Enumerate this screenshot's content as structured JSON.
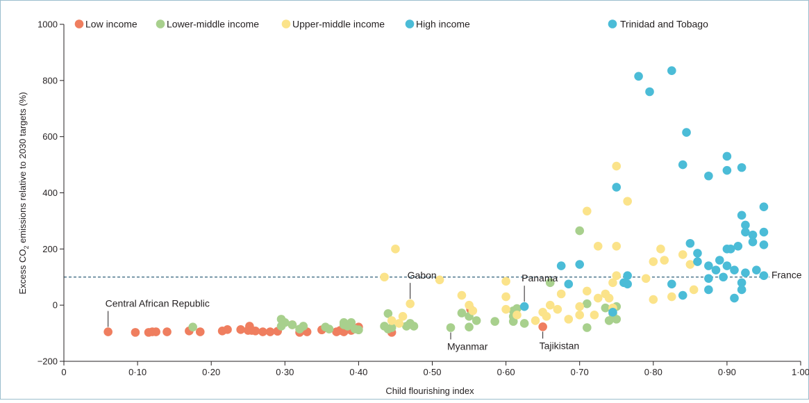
{
  "chart_data": {
    "type": "scatter",
    "xlabel": "Child flourishing index",
    "ylabel_main": "Excess CO",
    "ylabel_sub": "2",
    "ylabel_rest": " emissions relative to 2030 targets (%)",
    "xlim": [
      0,
      1.0
    ],
    "ylim": [
      -200,
      1000
    ],
    "x_ticks": [
      {
        "v": 0,
        "label": "0"
      },
      {
        "v": 0.1,
        "label": "0·10"
      },
      {
        "v": 0.2,
        "label": "0·20"
      },
      {
        "v": 0.3,
        "label": "0·30"
      },
      {
        "v": 0.4,
        "label": "0·40"
      },
      {
        "v": 0.5,
        "label": "0·50"
      },
      {
        "v": 0.6,
        "label": "0·60"
      },
      {
        "v": 0.7,
        "label": "0·70"
      },
      {
        "v": 0.8,
        "label": "0·80"
      },
      {
        "v": 0.9,
        "label": "0·90"
      },
      {
        "v": 1.0,
        "label": "1·00"
      }
    ],
    "y_ticks": [
      {
        "v": 1000,
        "label": "1000"
      },
      {
        "v": 800,
        "label": "800"
      },
      {
        "v": 600,
        "label": "600"
      },
      {
        "v": 400,
        "label": "400"
      },
      {
        "v": 200,
        "label": "200"
      },
      {
        "v": 0,
        "label": "0"
      },
      {
        "v": -200,
        "label": "−200"
      }
    ],
    "reference_line": {
      "y": 100,
      "style": "dashed",
      "color": "#2e5f7a"
    },
    "grid": false,
    "legend_placement": "top",
    "series": [
      {
        "name": "Low income",
        "color": "#ef7e5f",
        "points": [
          [
            0.06,
            -95
          ],
          [
            0.097,
            -97
          ],
          [
            0.115,
            -97
          ],
          [
            0.12,
            -95
          ],
          [
            0.125,
            -95
          ],
          [
            0.14,
            -95
          ],
          [
            0.17,
            -92
          ],
          [
            0.185,
            -95
          ],
          [
            0.215,
            -92
          ],
          [
            0.222,
            -87
          ],
          [
            0.24,
            -87
          ],
          [
            0.25,
            -90
          ],
          [
            0.252,
            -75
          ],
          [
            0.255,
            -90
          ],
          [
            0.26,
            -92
          ],
          [
            0.27,
            -95
          ],
          [
            0.28,
            -95
          ],
          [
            0.29,
            -93
          ],
          [
            0.31,
            -70
          ],
          [
            0.32,
            -97
          ],
          [
            0.33,
            -95
          ],
          [
            0.35,
            -88
          ],
          [
            0.37,
            -95
          ],
          [
            0.375,
            -90
          ],
          [
            0.38,
            -95
          ],
          [
            0.39,
            -90
          ],
          [
            0.4,
            -78
          ],
          [
            0.445,
            -97
          ],
          [
            0.552,
            -15
          ],
          [
            0.65,
            -77
          ]
        ]
      },
      {
        "name": "Lower-middle income",
        "color": "#a8d08d",
        "points": [
          [
            0.175,
            -78
          ],
          [
            0.295,
            -50
          ],
          [
            0.3,
            -62
          ],
          [
            0.295,
            -75
          ],
          [
            0.31,
            -70
          ],
          [
            0.32,
            -85
          ],
          [
            0.325,
            -75
          ],
          [
            0.355,
            -78
          ],
          [
            0.36,
            -85
          ],
          [
            0.38,
            -70
          ],
          [
            0.38,
            -62
          ],
          [
            0.385,
            -75
          ],
          [
            0.39,
            -62
          ],
          [
            0.395,
            -85
          ],
          [
            0.4,
            -88
          ],
          [
            0.435,
            -75
          ],
          [
            0.44,
            -85
          ],
          [
            0.445,
            -80
          ],
          [
            0.465,
            -75
          ],
          [
            0.47,
            -65
          ],
          [
            0.475,
            -75
          ],
          [
            0.44,
            -30
          ],
          [
            0.525,
            -80
          ],
          [
            0.54,
            -28
          ],
          [
            0.55,
            -40
          ],
          [
            0.55,
            -78
          ],
          [
            0.56,
            -55
          ],
          [
            0.585,
            -58
          ],
          [
            0.61,
            -58
          ],
          [
            0.61,
            -20
          ],
          [
            0.61,
            -40
          ],
          [
            0.615,
            -12
          ],
          [
            0.625,
            -65
          ],
          [
            0.66,
            80
          ],
          [
            0.7,
            265
          ],
          [
            0.71,
            -80
          ],
          [
            0.71,
            5
          ],
          [
            0.735,
            -10
          ],
          [
            0.74,
            -55
          ],
          [
            0.75,
            -50
          ],
          [
            0.75,
            -5
          ],
          [
            0.745,
            -30
          ]
        ]
      },
      {
        "name": "Upper-middle income",
        "color": "#fbe38a",
        "points": [
          [
            0.435,
            100
          ],
          [
            0.45,
            200
          ],
          [
            0.445,
            -55
          ],
          [
            0.455,
            -65
          ],
          [
            0.46,
            -40
          ],
          [
            0.47,
            5
          ],
          [
            0.51,
            90
          ],
          [
            0.54,
            35
          ],
          [
            0.55,
            0
          ],
          [
            0.555,
            -20
          ],
          [
            0.6,
            -15
          ],
          [
            0.6,
            30
          ],
          [
            0.6,
            85
          ],
          [
            0.615,
            -35
          ],
          [
            0.64,
            -55
          ],
          [
            0.65,
            -25
          ],
          [
            0.655,
            -40
          ],
          [
            0.66,
            0
          ],
          [
            0.67,
            -15
          ],
          [
            0.675,
            40
          ],
          [
            0.685,
            -50
          ],
          [
            0.7,
            -35
          ],
          [
            0.7,
            -5
          ],
          [
            0.71,
            50
          ],
          [
            0.71,
            335
          ],
          [
            0.72,
            -35
          ],
          [
            0.725,
            25
          ],
          [
            0.725,
            210
          ],
          [
            0.735,
            40
          ],
          [
            0.74,
            25
          ],
          [
            0.745,
            80
          ],
          [
            0.75,
            210
          ],
          [
            0.75,
            495
          ],
          [
            0.75,
            105
          ],
          [
            0.765,
            370
          ],
          [
            0.79,
            95
          ],
          [
            0.8,
            20
          ],
          [
            0.8,
            155
          ],
          [
            0.81,
            200
          ],
          [
            0.815,
            160
          ],
          [
            0.825,
            30
          ],
          [
            0.84,
            180
          ],
          [
            0.85,
            145
          ],
          [
            0.855,
            55
          ],
          [
            0.745,
            -10
          ]
        ]
      },
      {
        "name": "High income",
        "color": "#4bbcd7",
        "points": [
          [
            0.625,
            -5
          ],
          [
            0.675,
            140
          ],
          [
            0.685,
            75
          ],
          [
            0.7,
            145
          ],
          [
            0.745,
            -25
          ],
          [
            0.75,
            420
          ],
          [
            0.76,
            80
          ],
          [
            0.765,
            105
          ],
          [
            0.765,
            75
          ],
          [
            0.78,
            815
          ],
          [
            0.795,
            760
          ],
          [
            0.825,
            835
          ],
          [
            0.825,
            75
          ],
          [
            0.84,
            500
          ],
          [
            0.84,
            35
          ],
          [
            0.845,
            615
          ],
          [
            0.85,
            220
          ],
          [
            0.86,
            185
          ],
          [
            0.86,
            155
          ],
          [
            0.875,
            460
          ],
          [
            0.875,
            140
          ],
          [
            0.875,
            95
          ],
          [
            0.875,
            55
          ],
          [
            0.885,
            125
          ],
          [
            0.89,
            160
          ],
          [
            0.895,
            100
          ],
          [
            0.9,
            530
          ],
          [
            0.9,
            480
          ],
          [
            0.9,
            200
          ],
          [
            0.9,
            140
          ],
          [
            0.905,
            200
          ],
          [
            0.91,
            125
          ],
          [
            0.91,
            25
          ],
          [
            0.915,
            210
          ],
          [
            0.92,
            490
          ],
          [
            0.92,
            320
          ],
          [
            0.925,
            285
          ],
          [
            0.925,
            260
          ],
          [
            0.92,
            80
          ],
          [
            0.92,
            55
          ],
          [
            0.925,
            115
          ],
          [
            0.935,
            250
          ],
          [
            0.935,
            225
          ],
          [
            0.94,
            125
          ],
          [
            0.95,
            350
          ],
          [
            0.95,
            260
          ],
          [
            0.95,
            215
          ],
          [
            0.95,
            105
          ]
        ]
      }
    ],
    "extra_legend": {
      "label": "Trinidad and Tobago",
      "color": "#4bbcd7"
    },
    "annotations": [
      {
        "text": "Central African Republic",
        "x": 0.06,
        "y": -95,
        "pos": "above"
      },
      {
        "text": "Gabon",
        "x": 0.47,
        "y": 5,
        "pos": "above"
      },
      {
        "text": "Panama",
        "x": 0.625,
        "y": -5,
        "pos": "above"
      },
      {
        "text": "Myanmar",
        "x": 0.525,
        "y": -80,
        "pos": "below"
      },
      {
        "text": "Tajikistan",
        "x": 0.65,
        "y": -77,
        "pos": "below"
      },
      {
        "text": "France",
        "x": 0.95,
        "y": 105,
        "pos": "right"
      }
    ]
  }
}
